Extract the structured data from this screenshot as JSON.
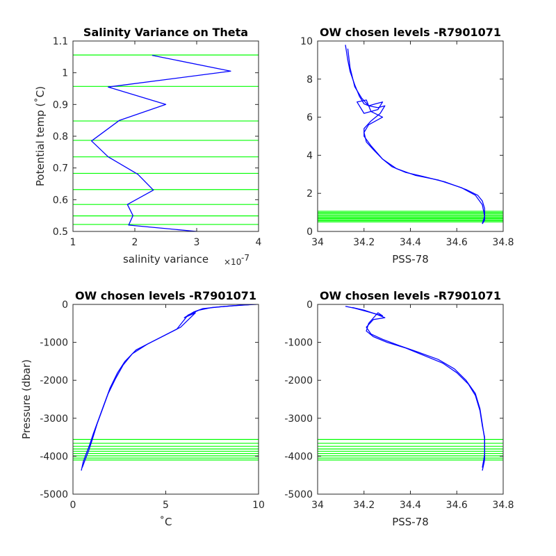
{
  "colors": {
    "series": "#0000ff",
    "levels": "#00ff00",
    "axis": "#262626",
    "background": "#ffffff"
  },
  "chart_data": [
    {
      "type": "line",
      "title": "Salinity Variance on Theta",
      "xlabel": "salinity variance",
      "xexponent": "×10",
      "xexponent_power": "-7",
      "ylabel": "Potential temp (˚C)",
      "xlim": [
        1,
        4
      ],
      "ylim": [
        0.5,
        1.1
      ],
      "xticks": [
        "1",
        "2",
        "3",
        "4"
      ],
      "yticks": [
        "0.5",
        "0.6",
        "0.7",
        "0.8",
        "0.9",
        "1",
        "1.1"
      ],
      "grid": false,
      "series": [
        {
          "x": [
            3.0,
            1.9,
            1.97,
            1.88,
            2.3,
            2.05,
            1.57,
            1.3,
            1.75,
            2.5,
            1.57,
            3.55,
            2.28
          ],
          "y": [
            0.5,
            0.52,
            0.55,
            0.585,
            0.63,
            0.68,
            0.735,
            0.785,
            0.85,
            0.9,
            0.955,
            1.005,
            1.055
          ]
        }
      ],
      "level_lines_y": [
        0.522,
        0.549,
        0.585,
        0.632,
        0.683,
        0.735,
        0.787,
        0.848,
        0.957,
        1.056
      ]
    },
    {
      "type": "line",
      "title": "OW chosen levels -R7901071",
      "xlabel": "PSS-78",
      "ylabel": "",
      "xlim": [
        34,
        34.8
      ],
      "ylim": [
        0,
        10
      ],
      "xticks": [
        "34",
        "34.2",
        "34.4",
        "34.6",
        "34.8"
      ],
      "yticks": [
        "0",
        "2",
        "4",
        "6",
        "8",
        "10"
      ],
      "grid": false,
      "series": [
        {
          "x": [
            34.12,
            34.13,
            34.14,
            34.16,
            34.18,
            34.2,
            34.22,
            34.25,
            34.28,
            34.26,
            34.2,
            34.17,
            34.21,
            34.23,
            34.28,
            34.25,
            34.22,
            34.2,
            34.21,
            34.24,
            34.28,
            34.32,
            34.38,
            34.45,
            34.55,
            34.64,
            34.69,
            34.71,
            34.72,
            34.72,
            34.72,
            34.71
          ],
          "y": [
            9.8,
            9.0,
            8.4,
            7.7,
            7.1,
            6.7,
            6.6,
            6.7,
            6.8,
            6.4,
            6.2,
            6.8,
            6.9,
            6.3,
            6.0,
            5.8,
            5.6,
            5.2,
            4.7,
            4.3,
            3.8,
            3.4,
            3.1,
            2.9,
            2.6,
            2.2,
            1.9,
            1.6,
            1.2,
            0.9,
            0.6,
            0.4
          ]
        },
        {
          "x": [
            34.13,
            34.14,
            34.16,
            34.19,
            34.22,
            34.26,
            34.29,
            34.27,
            34.23,
            34.2,
            34.2,
            34.23,
            34.28,
            34.34,
            34.42,
            34.52,
            34.62,
            34.68,
            34.71,
            34.72,
            34.71
          ],
          "y": [
            9.6,
            8.6,
            7.6,
            7.0,
            6.6,
            6.5,
            6.6,
            6.2,
            5.8,
            5.4,
            5.0,
            4.5,
            3.8,
            3.3,
            2.95,
            2.7,
            2.3,
            1.9,
            1.4,
            0.8,
            0.4
          ]
        }
      ],
      "level_lines_y": [
        0.5,
        0.56,
        0.62,
        0.68,
        0.74,
        0.8,
        0.86,
        0.93,
        1.0,
        1.06
      ]
    },
    {
      "type": "line",
      "title": "OW chosen levels -R7901071",
      "xlabel": "˚C",
      "ylabel": "Pressure (dbar)",
      "xlim": [
        0,
        10
      ],
      "ylim": [
        -5000,
        0
      ],
      "xticks": [
        "0",
        "5",
        "10"
      ],
      "yticks": [
        "-5000",
        "-4000",
        "-3000",
        "-2000",
        "-1000",
        "0"
      ],
      "grid": false,
      "series": [
        {
          "x": [
            9.9,
            9.0,
            8.0,
            7.0,
            6.5,
            6.0,
            6.6,
            5.8,
            5.0,
            4.2,
            3.4,
            2.8,
            2.4,
            2.0,
            1.7,
            1.4,
            1.1,
            0.9,
            0.7,
            0.55,
            0.45
          ],
          "y": [
            0,
            -20,
            -60,
            -110,
            -200,
            -350,
            -220,
            -600,
            -800,
            -1000,
            -1200,
            -1500,
            -1800,
            -2200,
            -2600,
            -3000,
            -3400,
            -3700,
            -3950,
            -4150,
            -4380
          ]
        },
        {
          "x": [
            9.5,
            8.5,
            7.5,
            6.8,
            6.2,
            5.6,
            4.8,
            4.0,
            3.2,
            2.7,
            2.3,
            1.9,
            1.6,
            1.3,
            1.05,
            0.85,
            0.65,
            0.5
          ],
          "y": [
            -10,
            -40,
            -80,
            -150,
            -280,
            -650,
            -850,
            -1050,
            -1300,
            -1600,
            -1950,
            -2350,
            -2750,
            -3150,
            -3550,
            -3850,
            -4100,
            -4300
          ]
        }
      ],
      "level_lines_y": [
        -3560,
        -3660,
        -3740,
        -3810,
        -3870,
        -3930,
        -3990,
        -4050,
        -4100
      ]
    },
    {
      "type": "line",
      "title": "OW chosen levels -R7901071",
      "xlabel": "PSS-78",
      "ylabel": "",
      "xlim": [
        34,
        34.8
      ],
      "ylim": [
        -5000,
        0
      ],
      "xticks": [
        "34",
        "34.2",
        "34.4",
        "34.6",
        "34.8"
      ],
      "yticks": [
        "-5000",
        "-4000",
        "-3000",
        "-2000",
        "-1000",
        "0"
      ],
      "grid": false,
      "series": [
        {
          "x": [
            34.12,
            34.16,
            34.22,
            34.28,
            34.26,
            34.22,
            34.21,
            34.24,
            34.3,
            34.38,
            34.46,
            34.54,
            34.6,
            34.65,
            34.68,
            34.7,
            34.71,
            34.72,
            34.72,
            34.72,
            34.71
          ],
          "y": [
            -50,
            -100,
            -200,
            -300,
            -220,
            -500,
            -700,
            -850,
            -1000,
            -1150,
            -1350,
            -1550,
            -1800,
            -2100,
            -2400,
            -2800,
            -3200,
            -3500,
            -3800,
            -4100,
            -4380
          ]
        },
        {
          "x": [
            34.15,
            34.2,
            34.25,
            34.29,
            34.24,
            34.21,
            34.23,
            34.28,
            34.35,
            34.43,
            34.52,
            34.59,
            34.64,
            34.68,
            34.7,
            34.71,
            34.72,
            34.72,
            34.71
          ],
          "y": [
            -80,
            -150,
            -250,
            -350,
            -400,
            -600,
            -780,
            -920,
            -1080,
            -1250,
            -1450,
            -1700,
            -2000,
            -2350,
            -2750,
            -3150,
            -3550,
            -3950,
            -4300
          ]
        }
      ],
      "level_lines_y": [
        -3560,
        -3660,
        -3740,
        -3810,
        -3870,
        -3930,
        -3990,
        -4050,
        -4100
      ]
    }
  ]
}
